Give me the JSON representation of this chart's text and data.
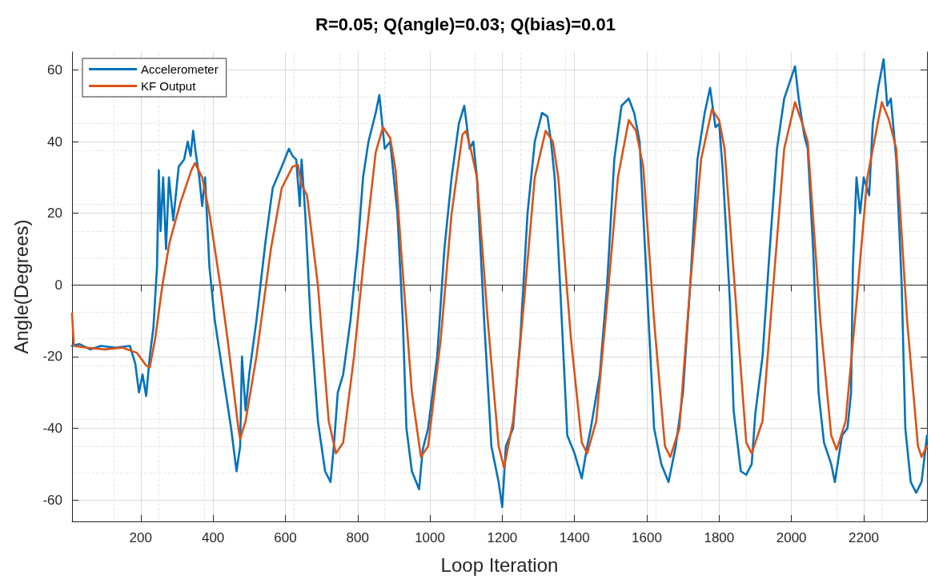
{
  "chart_data": {
    "type": "line",
    "title": "R=0.05; Q(angle)=0.03; Q(bias)=0.01",
    "xlabel": "Loop Iteration",
    "ylabel": "Angle(Degrees)",
    "xlim": [
      10,
      2375
    ],
    "xticks": [
      200,
      400,
      600,
      800,
      1000,
      1200,
      1400,
      1600,
      1800,
      2000,
      2200
    ],
    "ylim": [
      -66,
      65
    ],
    "yticks": [
      -60,
      -40,
      -20,
      0,
      20,
      40,
      60
    ],
    "grid": true,
    "legend": "top left",
    "marker": "none",
    "line_style": "solid",
    "series": [
      {
        "name": "Accelerometer",
        "color": "#0072bd",
        "x": [
          10,
          30,
          60,
          90,
          130,
          170,
          185,
          195,
          205,
          215,
          225,
          235,
          245,
          250,
          255,
          262,
          270,
          278,
          290,
          305,
          320,
          330,
          338,
          345,
          352,
          362,
          370,
          378,
          390,
          405,
          420,
          435,
          450,
          465,
          475,
          480,
          490,
          500,
          520,
          545,
          565,
          590,
          610,
          620,
          630,
          640,
          645,
          655,
          670,
          690,
          710,
          725,
          735,
          745,
          760,
          780,
          800,
          815,
          830,
          850,
          860,
          875,
          890,
          900,
          910,
          925,
          935,
          950,
          970,
          980,
          995,
          1020,
          1040,
          1060,
          1080,
          1095,
          1110,
          1120,
          1130,
          1150,
          1170,
          1190,
          1200,
          1210,
          1230,
          1250,
          1270,
          1290,
          1310,
          1325,
          1335,
          1345,
          1360,
          1380,
          1400,
          1420,
          1435,
          1445,
          1470,
          1490,
          1510,
          1530,
          1550,
          1565,
          1580,
          1590,
          1605,
          1620,
          1640,
          1660,
          1680,
          1700,
          1720,
          1740,
          1760,
          1775,
          1790,
          1800,
          1810,
          1830,
          1840,
          1860,
          1875,
          1890,
          1900,
          1920,
          1940,
          1960,
          1980,
          2000,
          2010,
          2020,
          2035,
          2045,
          2060,
          2075,
          2090,
          2110,
          2120,
          2140,
          2155,
          2165,
          2170,
          2180,
          2190,
          2200,
          2215,
          2225,
          2240,
          2255,
          2265,
          2275,
          2290,
          2305,
          2315,
          2330,
          2345,
          2360,
          2375
        ],
        "values": [
          -17,
          -16.5,
          -18,
          -17,
          -17.5,
          -17,
          -22,
          -30,
          -25,
          -31,
          -20,
          -12,
          5,
          32,
          15,
          30,
          10,
          30,
          18,
          33,
          35,
          40,
          36,
          43,
          37,
          30,
          22,
          30,
          5,
          -10,
          -20,
          -30,
          -40,
          -52,
          -45,
          -20,
          -35,
          -25,
          -10,
          12,
          27,
          33,
          38,
          36,
          35,
          22,
          35,
          20,
          -10,
          -38,
          -52,
          -55,
          -44,
          -30,
          -25,
          -10,
          10,
          30,
          40,
          48,
          53,
          38,
          40,
          30,
          20,
          -10,
          -40,
          -52,
          -57,
          -46,
          -40,
          -20,
          10,
          30,
          45,
          50,
          38,
          40,
          30,
          -10,
          -45,
          -55,
          -62,
          -45,
          -40,
          -15,
          20,
          40,
          48,
          47,
          40,
          30,
          0,
          -42,
          -47,
          -54,
          -45,
          -40,
          -25,
          0,
          35,
          50,
          52,
          48,
          40,
          20,
          -10,
          -40,
          -50,
          -55,
          -45,
          -30,
          0,
          35,
          48,
          55,
          44,
          45,
          32,
          -5,
          -35,
          -52,
          -53,
          -50,
          -36,
          -20,
          10,
          38,
          52,
          58,
          61,
          52,
          42,
          38,
          10,
          -30,
          -44,
          -50,
          -55,
          -42,
          -40,
          -30,
          5,
          30,
          20,
          30,
          25,
          45,
          55,
          63,
          50,
          52,
          35,
          0,
          -40,
          -55,
          -58,
          -55,
          -42
        ]
      },
      {
        "name": "KF Output",
        "color": "#d95319",
        "x": [
          10,
          15,
          50,
          100,
          150,
          190,
          215,
          225,
          240,
          260,
          280,
          310,
          340,
          350,
          370,
          390,
          420,
          440,
          470,
          475,
          490,
          520,
          560,
          590,
          620,
          635,
          645,
          660,
          690,
          720,
          740,
          760,
          790,
          820,
          850,
          870,
          890,
          905,
          920,
          950,
          975,
          995,
          1030,
          1060,
          1090,
          1100,
          1115,
          1130,
          1160,
          1190,
          1205,
          1230,
          1260,
          1290,
          1320,
          1340,
          1355,
          1390,
          1420,
          1435,
          1460,
          1490,
          1520,
          1550,
          1570,
          1590,
          1620,
          1650,
          1665,
          1690,
          1720,
          1750,
          1780,
          1800,
          1815,
          1850,
          1875,
          1890,
          1920,
          1950,
          1980,
          2010,
          2030,
          2045,
          2080,
          2110,
          2125,
          2150,
          2180,
          2210,
          2250,
          2270,
          2290,
          2320,
          2350,
          2360,
          2375
        ],
        "values": [
          -8,
          -17,
          -17.5,
          -18,
          -17.5,
          -19,
          -22.5,
          -23,
          -15,
          0,
          12,
          23,
          32,
          34,
          30,
          20,
          0,
          -15,
          -40,
          -43,
          -38,
          -20,
          10,
          27,
          33,
          33.5,
          28,
          25,
          0,
          -38,
          -47,
          -44,
          -20,
          10,
          37,
          44,
          41,
          32,
          10,
          -30,
          -48,
          -45,
          -15,
          20,
          42,
          43,
          37,
          30,
          -10,
          -45,
          -51,
          -38,
          -5,
          30,
          43,
          40,
          30,
          -15,
          -44,
          -47,
          -38,
          -5,
          30,
          46,
          43,
          33,
          -10,
          -45,
          -48,
          -40,
          0,
          35,
          49,
          46,
          38,
          -10,
          -44,
          -47,
          -38,
          0,
          38,
          51,
          45,
          40,
          -10,
          -42,
          -46,
          -38,
          -5,
          30,
          51,
          46,
          38,
          -10,
          -45,
          -48,
          -45
        ]
      }
    ]
  }
}
